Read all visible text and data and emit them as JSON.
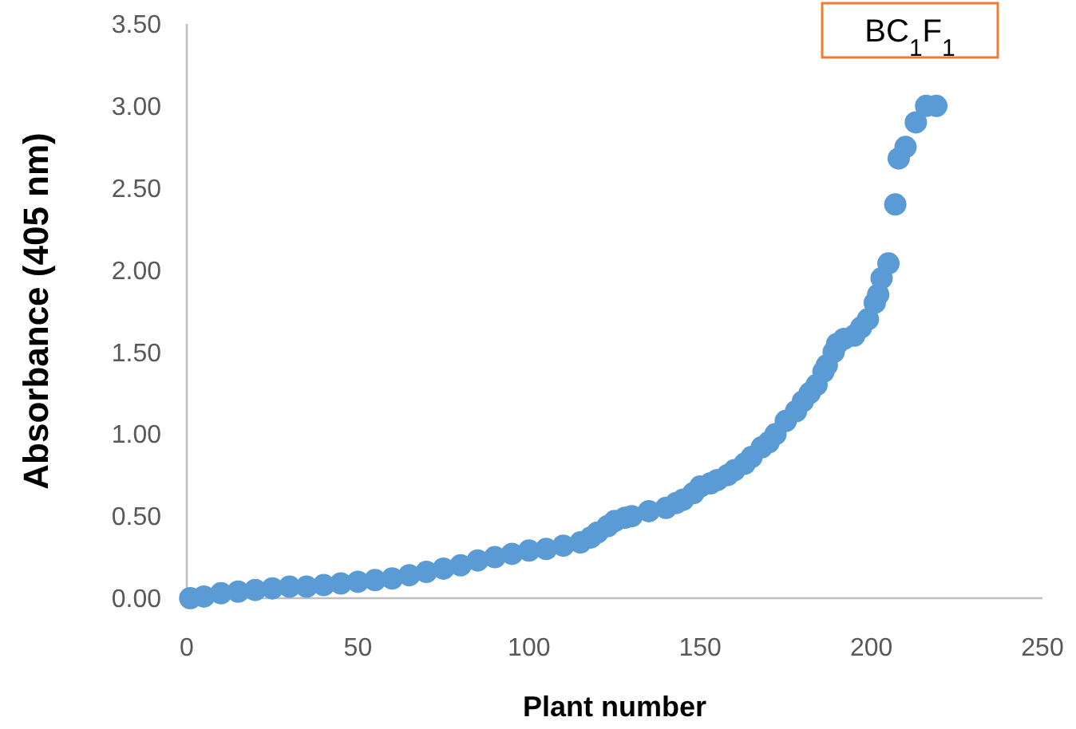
{
  "chart_data": {
    "type": "scatter",
    "xlabel": "Plant number",
    "ylabel": "Absorbance (405 nm)",
    "annotations": [
      "BC$_{1}$F$_{1}$"
    ],
    "xlim": [
      0,
      250
    ],
    "xticks": [
      0,
      50,
      100,
      150,
      200,
      250
    ],
    "ylim": [
      0,
      3.5
    ],
    "yticks": [
      {
        "value": 0,
        "label": "0.00"
      },
      {
        "value": 0.5,
        "label": "0.50"
      },
      {
        "value": 1,
        "label": "1.00"
      },
      {
        "value": 1.5,
        "label": "1.50"
      },
      {
        "value": 2,
        "label": "2.00"
      },
      {
        "value": 2.5,
        "label": "2.50"
      },
      {
        "value": 3,
        "label": "3.00"
      },
      {
        "value": 3.5,
        "label": "3.50"
      }
    ],
    "grid": false,
    "marker": "circle",
    "series": [
      {
        "color": "#5b9bd5",
        "x": [
          1,
          5,
          10,
          15,
          20,
          25,
          30,
          35,
          40,
          45,
          50,
          55,
          60,
          65,
          70,
          75,
          80,
          85,
          90,
          95,
          100,
          105,
          110,
          115,
          118,
          120,
          123,
          125,
          128,
          130,
          135,
          140,
          143,
          145,
          148,
          150,
          153,
          155,
          158,
          160,
          163,
          165,
          168,
          170,
          172,
          175,
          178,
          180,
          182,
          184,
          186,
          187,
          189,
          190,
          192,
          195,
          197,
          199,
          201,
          202,
          203,
          205,
          207,
          208,
          210,
          213,
          216,
          219
        ],
        "values": [
          0.0,
          0.01,
          0.03,
          0.04,
          0.05,
          0.06,
          0.07,
          0.07,
          0.08,
          0.09,
          0.1,
          0.11,
          0.12,
          0.14,
          0.16,
          0.18,
          0.2,
          0.23,
          0.25,
          0.27,
          0.29,
          0.3,
          0.32,
          0.34,
          0.37,
          0.4,
          0.44,
          0.47,
          0.49,
          0.5,
          0.53,
          0.55,
          0.58,
          0.6,
          0.64,
          0.68,
          0.7,
          0.72,
          0.75,
          0.78,
          0.82,
          0.86,
          0.92,
          0.95,
          1.0,
          1.08,
          1.14,
          1.2,
          1.25,
          1.3,
          1.38,
          1.42,
          1.5,
          1.55,
          1.58,
          1.6,
          1.65,
          1.7,
          1.8,
          1.85,
          1.95,
          2.04,
          2.4,
          2.68,
          2.75,
          2.9,
          3.0,
          3.0
        ]
      }
    ]
  }
}
